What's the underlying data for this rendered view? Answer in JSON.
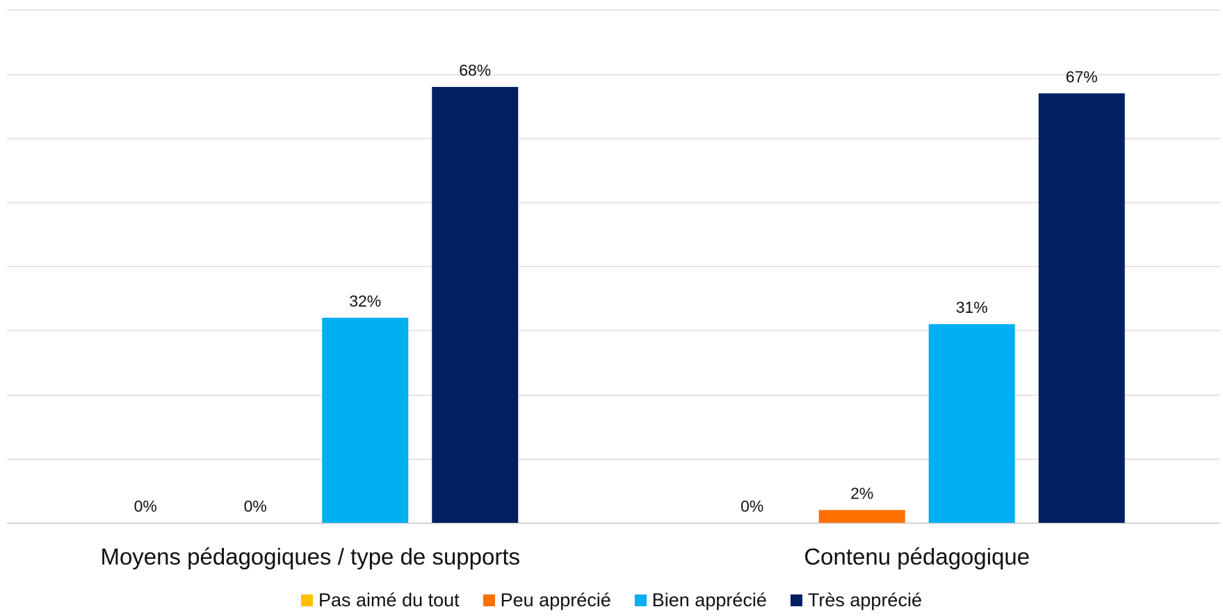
{
  "chart_data": {
    "type": "bar",
    "categories": [
      "Moyens pédagogiques / type de supports",
      "Contenu pédagogique"
    ],
    "series": [
      {
        "name": "Pas aimé du tout",
        "color": "#FFC000",
        "values": [
          0,
          0
        ],
        "labels": [
          "0%",
          "0%"
        ]
      },
      {
        "name": "Peu apprécié",
        "color": "#FF7000",
        "values": [
          0,
          2
        ],
        "labels": [
          "0%",
          "2%"
        ]
      },
      {
        "name": "Bien apprécié",
        "color": "#00B0F0",
        "values": [
          32,
          31
        ],
        "labels": [
          "32%",
          "31%"
        ]
      },
      {
        "name": "Très apprécié",
        "color": "#002060",
        "values": [
          68,
          67
        ],
        "labels": [
          "68%",
          "67%"
        ]
      }
    ],
    "ylim": [
      0,
      80
    ],
    "ytick_step": 10,
    "grid": true,
    "legend_position": "bottom"
  }
}
